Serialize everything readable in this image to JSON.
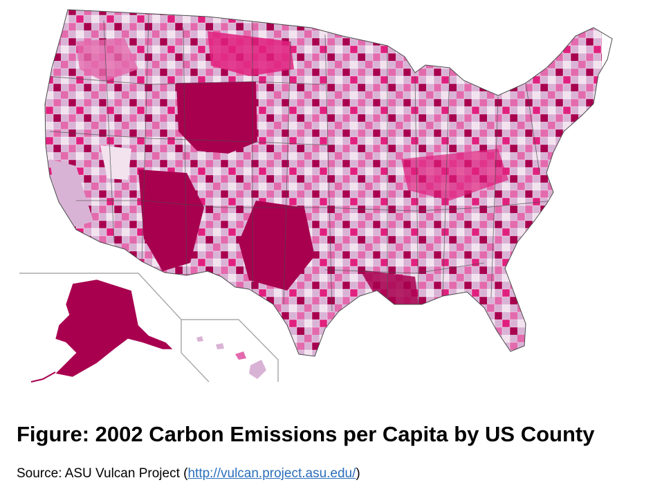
{
  "figure": {
    "caption": "Figure: 2002 Carbon Emissions per Capita by US County",
    "source_prefix": "Source: ASU Vulcan Project (",
    "source_link": "http://vulcan.project.asu.edu/",
    "source_suffix": ")"
  },
  "colors": {
    "background": "#ffffff",
    "level_1": "#f2e3ef",
    "level_2": "#d9b3d6",
    "level_3": "#e36aad",
    "level_4": "#e0207e",
    "level_5": "#a8004f",
    "state_border": "#4a4a4a",
    "inset_frame": "#aaaaaa",
    "link": "#2a6ebb"
  },
  "map": {
    "subject": "US counties shaded by carbon emissions per capita",
    "regions": [
      "Contiguous United States",
      "Alaska",
      "Hawaii"
    ]
  }
}
